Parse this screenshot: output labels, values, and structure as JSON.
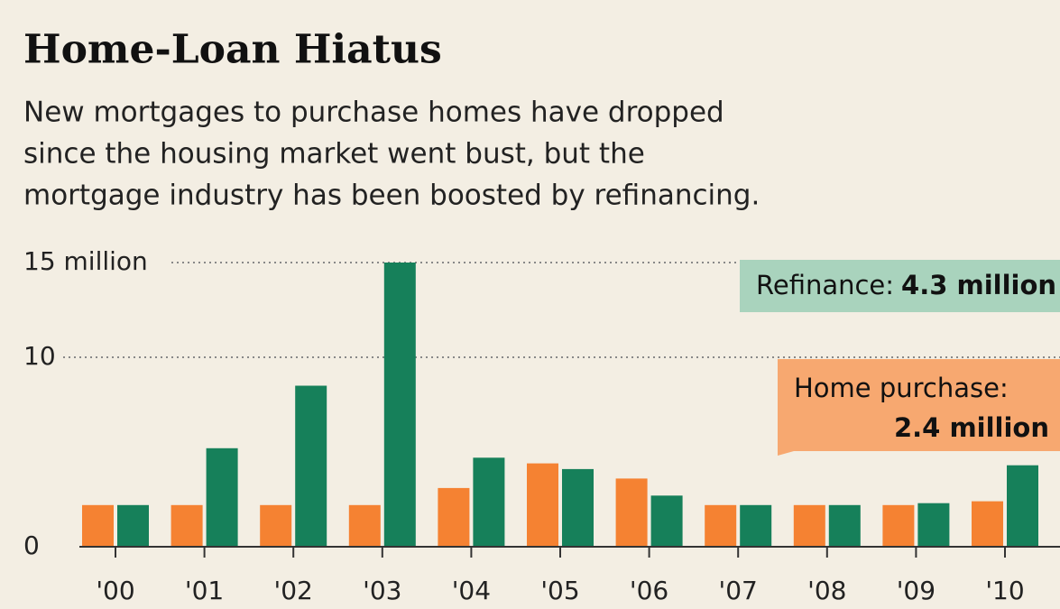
{
  "chart_data": {
    "type": "bar",
    "title": "Home-Loan Hiatus",
    "subtitle": [
      "New mortgages to purchase homes have dropped",
      "since the housing market went bust, but the",
      "mortgage industry has been boosted by refinancing."
    ],
    "categories": [
      "'00",
      "'01",
      "'02",
      "'03",
      "'04",
      "'05",
      "'06",
      "'07",
      "'08",
      "'09",
      "'10"
    ],
    "series": [
      {
        "name": "Home purchase:",
        "color": "#f58232",
        "values": [
          2.2,
          2.2,
          2.2,
          2.2,
          3.1,
          4.4,
          3.6,
          2.2,
          2.2,
          2.2,
          2.4
        ],
        "value_labels": [
          null,
          null,
          null,
          null,
          null,
          null,
          null,
          null,
          null,
          null,
          "2.4 million"
        ]
      },
      {
        "name": "Refinance:",
        "color": "#16805a",
        "values": [
          2.2,
          5.2,
          8.5,
          15,
          4.7,
          4.1,
          2.7,
          2.2,
          2.2,
          2.3,
          4.3
        ],
        "value_labels": [
          null,
          null,
          null,
          null,
          null,
          null,
          null,
          null,
          null,
          null,
          "4.3 million"
        ]
      }
    ],
    "ylim": [
      0,
      15
    ],
    "yticks": [
      0,
      10,
      {
        "value": 15,
        "label": "15 million"
      }
    ],
    "grid": true
  }
}
